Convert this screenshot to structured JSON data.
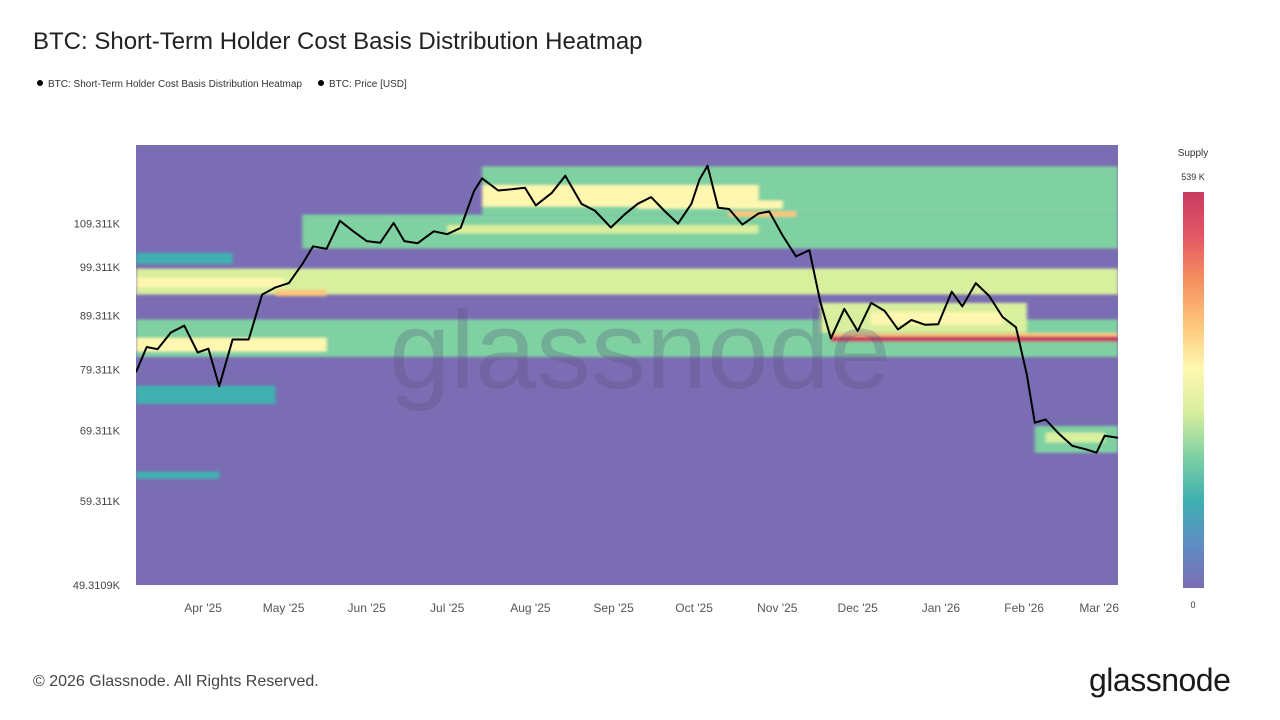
{
  "title": "BTC: Short-Term Holder Cost Basis Distribution Heatmap",
  "legend": [
    {
      "label": "BTC: Short-Term Holder Cost Basis Distribution Heatmap",
      "color": "#000000"
    },
    {
      "label": "BTC: Price [USD]",
      "color": "#000000"
    }
  ],
  "watermark": "glassnode",
  "colorbar": {
    "title": "Supply",
    "max_label": "539 K",
    "min_label": "0",
    "colors": [
      "#7b6db3",
      "#5e8ec4",
      "#3fb0b0",
      "#7fd1a2",
      "#d8ef9e",
      "#fff7b0",
      "#fdc57a",
      "#f58f5f",
      "#e45764",
      "#c73b62"
    ]
  },
  "footer": {
    "copyright": "© 2026 Glassnode. All Rights Reserved.",
    "brand": "glassnode"
  },
  "chart_data": {
    "type": "heatmap",
    "y_scale": "log",
    "ylim": [
      49310.9,
      130000
    ],
    "xlim": [
      "2025-03-07",
      "2026-03-08"
    ],
    "y_ticks": [
      {
        "value": 109311,
        "label": "109.311K"
      },
      {
        "value": 99311,
        "label": "99.311K"
      },
      {
        "value": 89311,
        "label": "89.311K"
      },
      {
        "value": 79311,
        "label": "79.311K"
      },
      {
        "value": 69311,
        "label": "69.311K"
      },
      {
        "value": 59311,
        "label": "59.311K"
      },
      {
        "value": 49310.9,
        "label": "49.3109K"
      }
    ],
    "x_ticks": [
      {
        "date": "2025-04-01",
        "label": "Apr '25"
      },
      {
        "date": "2025-05-01",
        "label": "May '25"
      },
      {
        "date": "2025-06-01",
        "label": "Jun '25"
      },
      {
        "date": "2025-07-01",
        "label": "Jul '25"
      },
      {
        "date": "2025-08-01",
        "label": "Aug '25"
      },
      {
        "date": "2025-09-01",
        "label": "Sep '25"
      },
      {
        "date": "2025-10-01",
        "label": "Oct '25"
      },
      {
        "date": "2025-11-01",
        "label": "Nov '25"
      },
      {
        "date": "2025-12-01",
        "label": "Dec '25"
      },
      {
        "date": "2026-01-01",
        "label": "Jan '26"
      },
      {
        "date": "2026-02-01",
        "label": "Feb '26"
      },
      {
        "date": "2026-03-01",
        "label": "Mar '26"
      }
    ],
    "price_series": {
      "x": [
        "2025-03-07",
        "2025-03-11",
        "2025-03-15",
        "2025-03-20",
        "2025-03-25",
        "2025-03-30",
        "2025-04-03",
        "2025-04-07",
        "2025-04-12",
        "2025-04-18",
        "2025-04-23",
        "2025-04-28",
        "2025-05-03",
        "2025-05-08",
        "2025-05-12",
        "2025-05-17",
        "2025-05-22",
        "2025-05-27",
        "2025-06-01",
        "2025-06-06",
        "2025-06-11",
        "2025-06-15",
        "2025-06-20",
        "2025-06-26",
        "2025-07-01",
        "2025-07-06",
        "2025-07-11",
        "2025-07-14",
        "2025-07-20",
        "2025-07-25",
        "2025-07-30",
        "2025-08-03",
        "2025-08-09",
        "2025-08-14",
        "2025-08-20",
        "2025-08-25",
        "2025-08-31",
        "2025-09-05",
        "2025-09-10",
        "2025-09-15",
        "2025-09-20",
        "2025-09-25",
        "2025-09-30",
        "2025-10-03",
        "2025-10-06",
        "2025-10-10",
        "2025-10-14",
        "2025-10-19",
        "2025-10-25",
        "2025-10-29",
        "2025-11-03",
        "2025-11-08",
        "2025-11-13",
        "2025-11-17",
        "2025-11-21",
        "2025-11-26",
        "2025-12-01",
        "2025-12-06",
        "2025-12-11",
        "2025-12-16",
        "2025-12-21",
        "2025-12-26",
        "2025-12-31",
        "2026-01-05",
        "2026-01-09",
        "2026-01-14",
        "2026-01-19",
        "2026-01-24",
        "2026-01-29",
        "2026-02-02",
        "2026-02-05",
        "2026-02-09",
        "2026-02-14",
        "2026-02-19",
        "2026-02-24",
        "2026-02-28",
        "2026-03-03",
        "2026-03-08"
      ],
      "y": [
        78800,
        83300,
        82900,
        86000,
        87300,
        82300,
        83000,
        76400,
        84700,
        84700,
        93500,
        95000,
        95900,
        100000,
        104000,
        103400,
        110000,
        107500,
        105200,
        104800,
        109500,
        105200,
        104700,
        107500,
        106800,
        108300,
        117500,
        120800,
        117600,
        117900,
        118300,
        113800,
        117000,
        121500,
        114200,
        112500,
        108400,
        111500,
        114200,
        115900,
        112400,
        109300,
        114200,
        120400,
        124200,
        113200,
        112900,
        109100,
        111800,
        112300,
        106500,
        101700,
        103100,
        92100,
        84900,
        90600,
        86300,
        91800,
        90200,
        86600,
        88400,
        87500,
        87600,
        94100,
        91100,
        95900,
        93200,
        89000,
        87000,
        78400,
        70500,
        71000,
        68800,
        67000,
        66500,
        66000,
        68500,
        68200
      ]
    },
    "supply_bands": [
      {
        "price_low": 111500,
        "price_high": 124000,
        "start": "2025-07-14",
        "end": "2026-03-08",
        "intensity": 0.38
      },
      {
        "price_low": 113500,
        "price_high": 119000,
        "start": "2025-07-14",
        "end": "2025-10-25",
        "intensity": 0.52
      },
      {
        "price_low": 116000,
        "price_high": 118500,
        "start": "2025-08-09",
        "end": "2025-08-31",
        "intensity": 0.58
      },
      {
        "price_low": 113000,
        "price_high": 115000,
        "start": "2025-09-10",
        "end": "2025-11-03",
        "intensity": 0.5
      },
      {
        "price_low": 103500,
        "price_high": 111500,
        "start": "2025-05-08",
        "end": "2026-03-08",
        "intensity": 0.36
      },
      {
        "price_low": 107000,
        "price_high": 109000,
        "start": "2025-07-01",
        "end": "2025-10-25",
        "intensity": 0.48
      },
      {
        "price_low": 111000,
        "price_high": 112300,
        "start": "2025-10-14",
        "end": "2025-11-08",
        "intensity": 0.66
      },
      {
        "price_low": 93500,
        "price_high": 99000,
        "start": "2025-03-07",
        "end": "2026-03-08",
        "intensity": 0.42
      },
      {
        "price_low": 95000,
        "price_high": 97000,
        "start": "2025-03-07",
        "end": "2025-05-01",
        "intensity": 0.6
      },
      {
        "price_low": 93200,
        "price_high": 94500,
        "start": "2025-04-28",
        "end": "2025-05-17",
        "intensity": 0.62
      },
      {
        "price_low": 100000,
        "price_high": 102500,
        "start": "2025-03-07",
        "end": "2025-04-12",
        "intensity": 0.25
      },
      {
        "price_low": 81500,
        "price_high": 88500,
        "start": "2025-03-07",
        "end": "2026-03-08",
        "intensity": 0.33
      },
      {
        "price_low": 82500,
        "price_high": 85000,
        "start": "2025-03-07",
        "end": "2025-05-17",
        "intensity": 0.5
      },
      {
        "price_low": 86000,
        "price_high": 91800,
        "start": "2025-11-17",
        "end": "2026-02-02",
        "intensity": 0.4
      },
      {
        "price_low": 87500,
        "price_high": 90000,
        "start": "2025-12-06",
        "end": "2026-01-24",
        "intensity": 0.52
      },
      {
        "price_low": 84300,
        "price_high": 85300,
        "start": "2025-11-21",
        "end": "2026-03-08",
        "intensity": 0.95
      },
      {
        "price_low": 85300,
        "price_high": 85900,
        "start": "2025-11-21",
        "end": "2026-03-08",
        "intensity": 0.72
      },
      {
        "price_low": 73500,
        "price_high": 76500,
        "start": "2025-03-07",
        "end": "2025-04-28",
        "intensity": 0.18
      },
      {
        "price_low": 66000,
        "price_high": 70000,
        "start": "2026-02-05",
        "end": "2026-03-08",
        "intensity": 0.3
      },
      {
        "price_low": 67500,
        "price_high": 69000,
        "start": "2026-02-09",
        "end": "2026-03-03",
        "intensity": 0.45
      },
      {
        "price_low": 62300,
        "price_high": 63300,
        "start": "2025-03-07",
        "end": "2025-04-07",
        "intensity": 0.25
      }
    ]
  }
}
